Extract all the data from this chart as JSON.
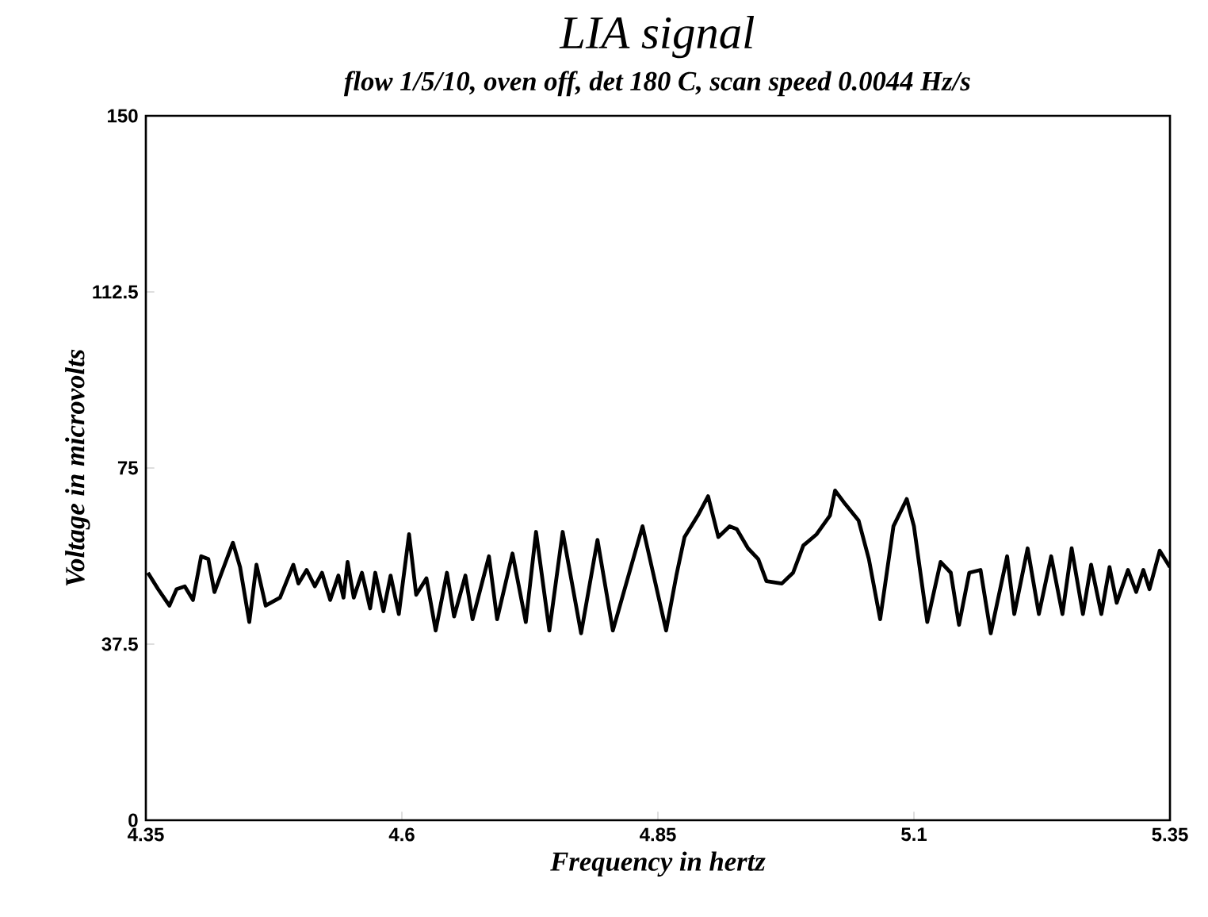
{
  "chart_data": {
    "type": "line",
    "title": "LIA signal",
    "subtitle": "flow 1/5/10, oven off, det 180 C, scan speed 0.0044 Hz/s",
    "xlabel": "Frequency in hertz",
    "ylabel": "Voltage in microvolts",
    "xlim": [
      4.35,
      5.35
    ],
    "ylim": [
      0,
      150
    ],
    "xticks": [
      4.35,
      4.6,
      4.85,
      5.1,
      5.35
    ],
    "yticks": [
      0,
      37.5,
      75,
      112.5,
      150
    ],
    "marker": "none",
    "line_style": "solid",
    "series": [
      {
        "color": "#000000",
        "x": [
          4.352,
          4.362,
          4.373,
          4.38,
          4.388,
          4.396,
          4.404,
          4.411,
          4.417,
          4.424,
          4.435,
          4.442,
          4.451,
          4.458,
          4.467,
          4.481,
          4.494,
          4.499,
          4.507,
          4.515,
          4.522,
          4.53,
          4.538,
          4.543,
          4.547,
          4.553,
          4.561,
          4.569,
          4.574,
          4.582,
          4.589,
          4.597,
          4.607,
          4.614,
          4.624,
          4.633,
          4.644,
          4.651,
          4.662,
          4.669,
          4.685,
          4.693,
          4.708,
          4.721,
          4.731,
          4.744,
          4.757,
          4.775,
          4.791,
          4.806,
          4.835,
          4.858,
          4.868,
          4.876,
          4.889,
          4.899,
          4.909,
          4.92,
          4.927,
          4.938,
          4.948,
          4.956,
          4.971,
          4.982,
          4.992,
          5.005,
          5.018,
          5.023,
          5.033,
          5.046,
          5.056,
          5.067,
          5.08,
          5.093,
          5.1,
          5.113,
          5.126,
          5.136,
          5.144,
          5.154,
          5.165,
          5.175,
          5.191,
          5.198,
          5.211,
          5.222,
          5.234,
          5.245,
          5.254,
          5.265,
          5.273,
          5.283,
          5.291,
          5.298,
          5.309,
          5.317,
          5.324,
          5.33,
          5.34,
          5.35
        ],
        "values": [
          52.7,
          49.2,
          45.7,
          49.2,
          49.8,
          46.9,
          56.2,
          55.6,
          48.6,
          52.7,
          59.1,
          53.9,
          42.2,
          54.4,
          45.7,
          47.4,
          54.4,
          50.4,
          53.3,
          49.8,
          52.7,
          46.9,
          52.1,
          47.4,
          55.0,
          47.4,
          52.7,
          45.1,
          52.7,
          44.5,
          52.1,
          43.9,
          60.9,
          48.0,
          51.5,
          40.4,
          52.7,
          43.4,
          52.1,
          42.8,
          56.2,
          42.8,
          56.8,
          42.2,
          61.4,
          40.4,
          61.4,
          39.8,
          59.7,
          40.4,
          62.6,
          40.4,
          52.1,
          60.3,
          64.9,
          69.0,
          60.3,
          62.6,
          62.0,
          57.9,
          55.6,
          50.9,
          50.4,
          52.7,
          58.5,
          60.9,
          64.9,
          70.2,
          67.3,
          63.8,
          55.6,
          42.8,
          62.6,
          68.4,
          62.6,
          42.2,
          55.0,
          52.7,
          41.6,
          52.7,
          53.3,
          39.8,
          56.2,
          43.9,
          57.9,
          43.9,
          56.2,
          43.9,
          57.9,
          43.9,
          54.4,
          43.9,
          53.9,
          46.3,
          53.3,
          48.6,
          53.3,
          49.2,
          57.4,
          53.9
        ]
      }
    ]
  }
}
